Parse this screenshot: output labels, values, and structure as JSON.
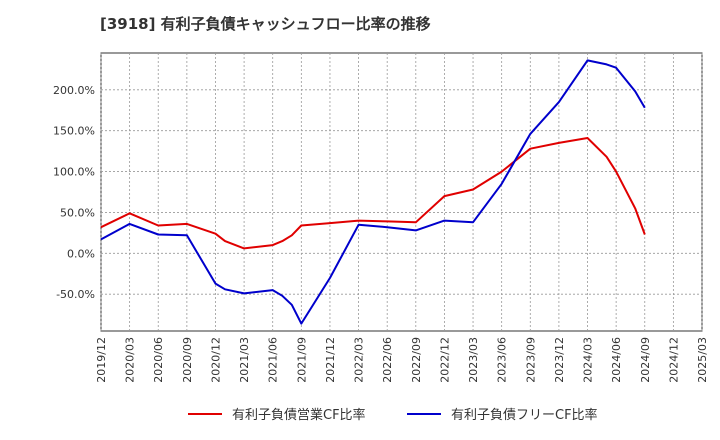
{
  "chart_data": {
    "type": "line",
    "title": "[3918]  有利子負債キャッシュフロー比率の推移",
    "xlabel": "",
    "ylabel": "",
    "ylim": [
      -95,
      245
    ],
    "grid": true,
    "legend_position": "bottom",
    "y_ticks": [
      200,
      150,
      100,
      50,
      0,
      -50
    ],
    "y_tick_labels": [
      "200.0%",
      "150.0%",
      "100.0%",
      "50.0%",
      "0.0%",
      "-50.0%"
    ],
    "x_tick_labels": [
      "2019/12",
      "2020/03",
      "2020/06",
      "2020/09",
      "2020/12",
      "2021/03",
      "2021/06",
      "2021/09",
      "2021/12",
      "2022/03",
      "2022/06",
      "2022/09",
      "2022/12",
      "2023/03",
      "2023/06",
      "2023/09",
      "2023/12",
      "2024/03",
      "2024/06",
      "2024/09",
      "2024/12",
      "2025/03"
    ],
    "x": [
      "2019/12",
      "2020/03",
      "2020/06",
      "2020/09",
      "2020/12",
      "2021/01",
      "2021/03",
      "2021/06",
      "2021/07",
      "2021/08",
      "2021/09",
      "2021/12",
      "2022/03",
      "2022/06",
      "2022/09",
      "2022/12",
      "2023/03",
      "2023/06",
      "2023/09",
      "2023/12",
      "2024/03",
      "2024/05",
      "2024/06",
      "2024/08",
      "2024/09"
    ],
    "series": [
      {
        "name": "有利子負債営業CF比率",
        "color": "#e00000",
        "values": [
          32,
          49,
          34,
          36,
          24,
          15,
          6,
          10,
          15,
          22,
          34,
          37,
          40,
          39,
          38,
          70,
          78,
          100,
          128,
          135,
          141,
          118,
          100,
          55,
          23
        ]
      },
      {
        "name": "有利子負債フリーCF比率",
        "color": "#0000cc",
        "values": [
          17,
          36,
          23,
          22,
          -37,
          -44,
          -49,
          -45,
          -52,
          -63,
          -86,
          -30,
          35,
          32,
          28,
          40,
          38,
          85,
          146,
          185,
          236,
          231,
          227,
          198,
          178
        ]
      }
    ]
  }
}
